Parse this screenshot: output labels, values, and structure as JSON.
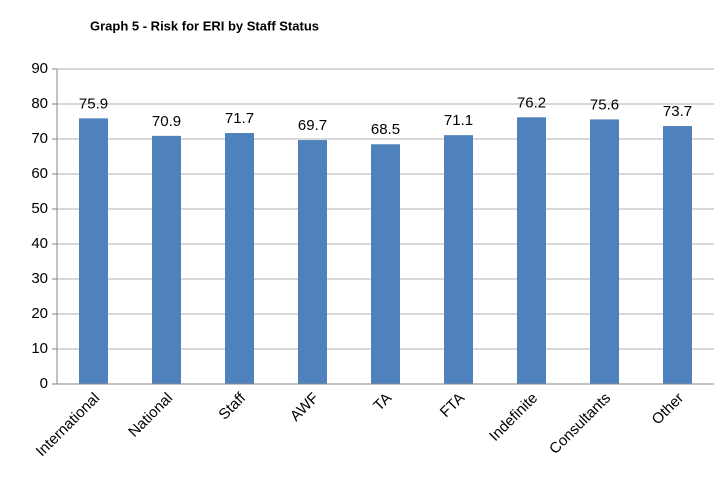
{
  "chart_data": {
    "type": "bar",
    "title": "Graph 5 - Risk for ERI by Staff Status",
    "categories": [
      "International",
      "National",
      "Staff",
      "AWF",
      "TA",
      "FTA",
      "Indefinite",
      "Consultants",
      "Other"
    ],
    "values": [
      75.9,
      70.9,
      71.7,
      69.7,
      68.5,
      71.1,
      76.2,
      75.6,
      73.7
    ],
    "color": "#4f81bd",
    "ylim": [
      0,
      90
    ],
    "yticks": [
      0,
      10,
      20,
      30,
      40,
      50,
      60,
      70,
      80,
      90
    ],
    "grid": true
  }
}
